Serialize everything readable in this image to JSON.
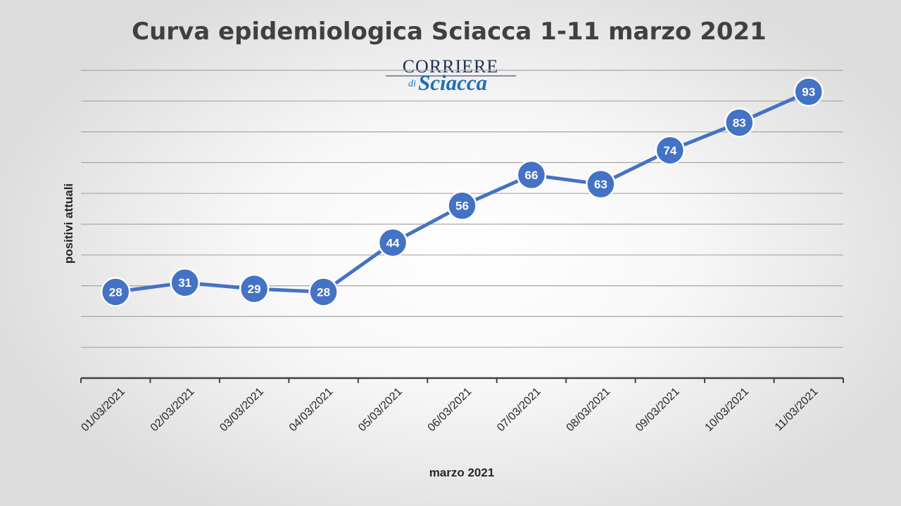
{
  "chart_data": {
    "type": "line",
    "title": "Curva epidemiologica Sciacca 1-11 marzo 2021",
    "xlabel": "marzo 2021",
    "ylabel": "positivi attuali",
    "categories": [
      "01/03/2021",
      "02/03/2021",
      "03/03/2021",
      "04/03/2021",
      "05/03/2021",
      "06/03/2021",
      "07/03/2021",
      "08/03/2021",
      "09/03/2021",
      "10/03/2021",
      "11/03/2021"
    ],
    "series": [
      {
        "values": [
          28,
          31,
          29,
          28,
          44,
          56,
          66,
          63,
          74,
          83,
          93
        ]
      }
    ],
    "ylim": [
      0,
      100
    ],
    "grid": true,
    "legend": "none",
    "data_labels": true,
    "color": "#4472c4"
  },
  "logo": {
    "line1": "CORRIERE",
    "line2_prefix": "di",
    "line2": "Sciacca"
  }
}
